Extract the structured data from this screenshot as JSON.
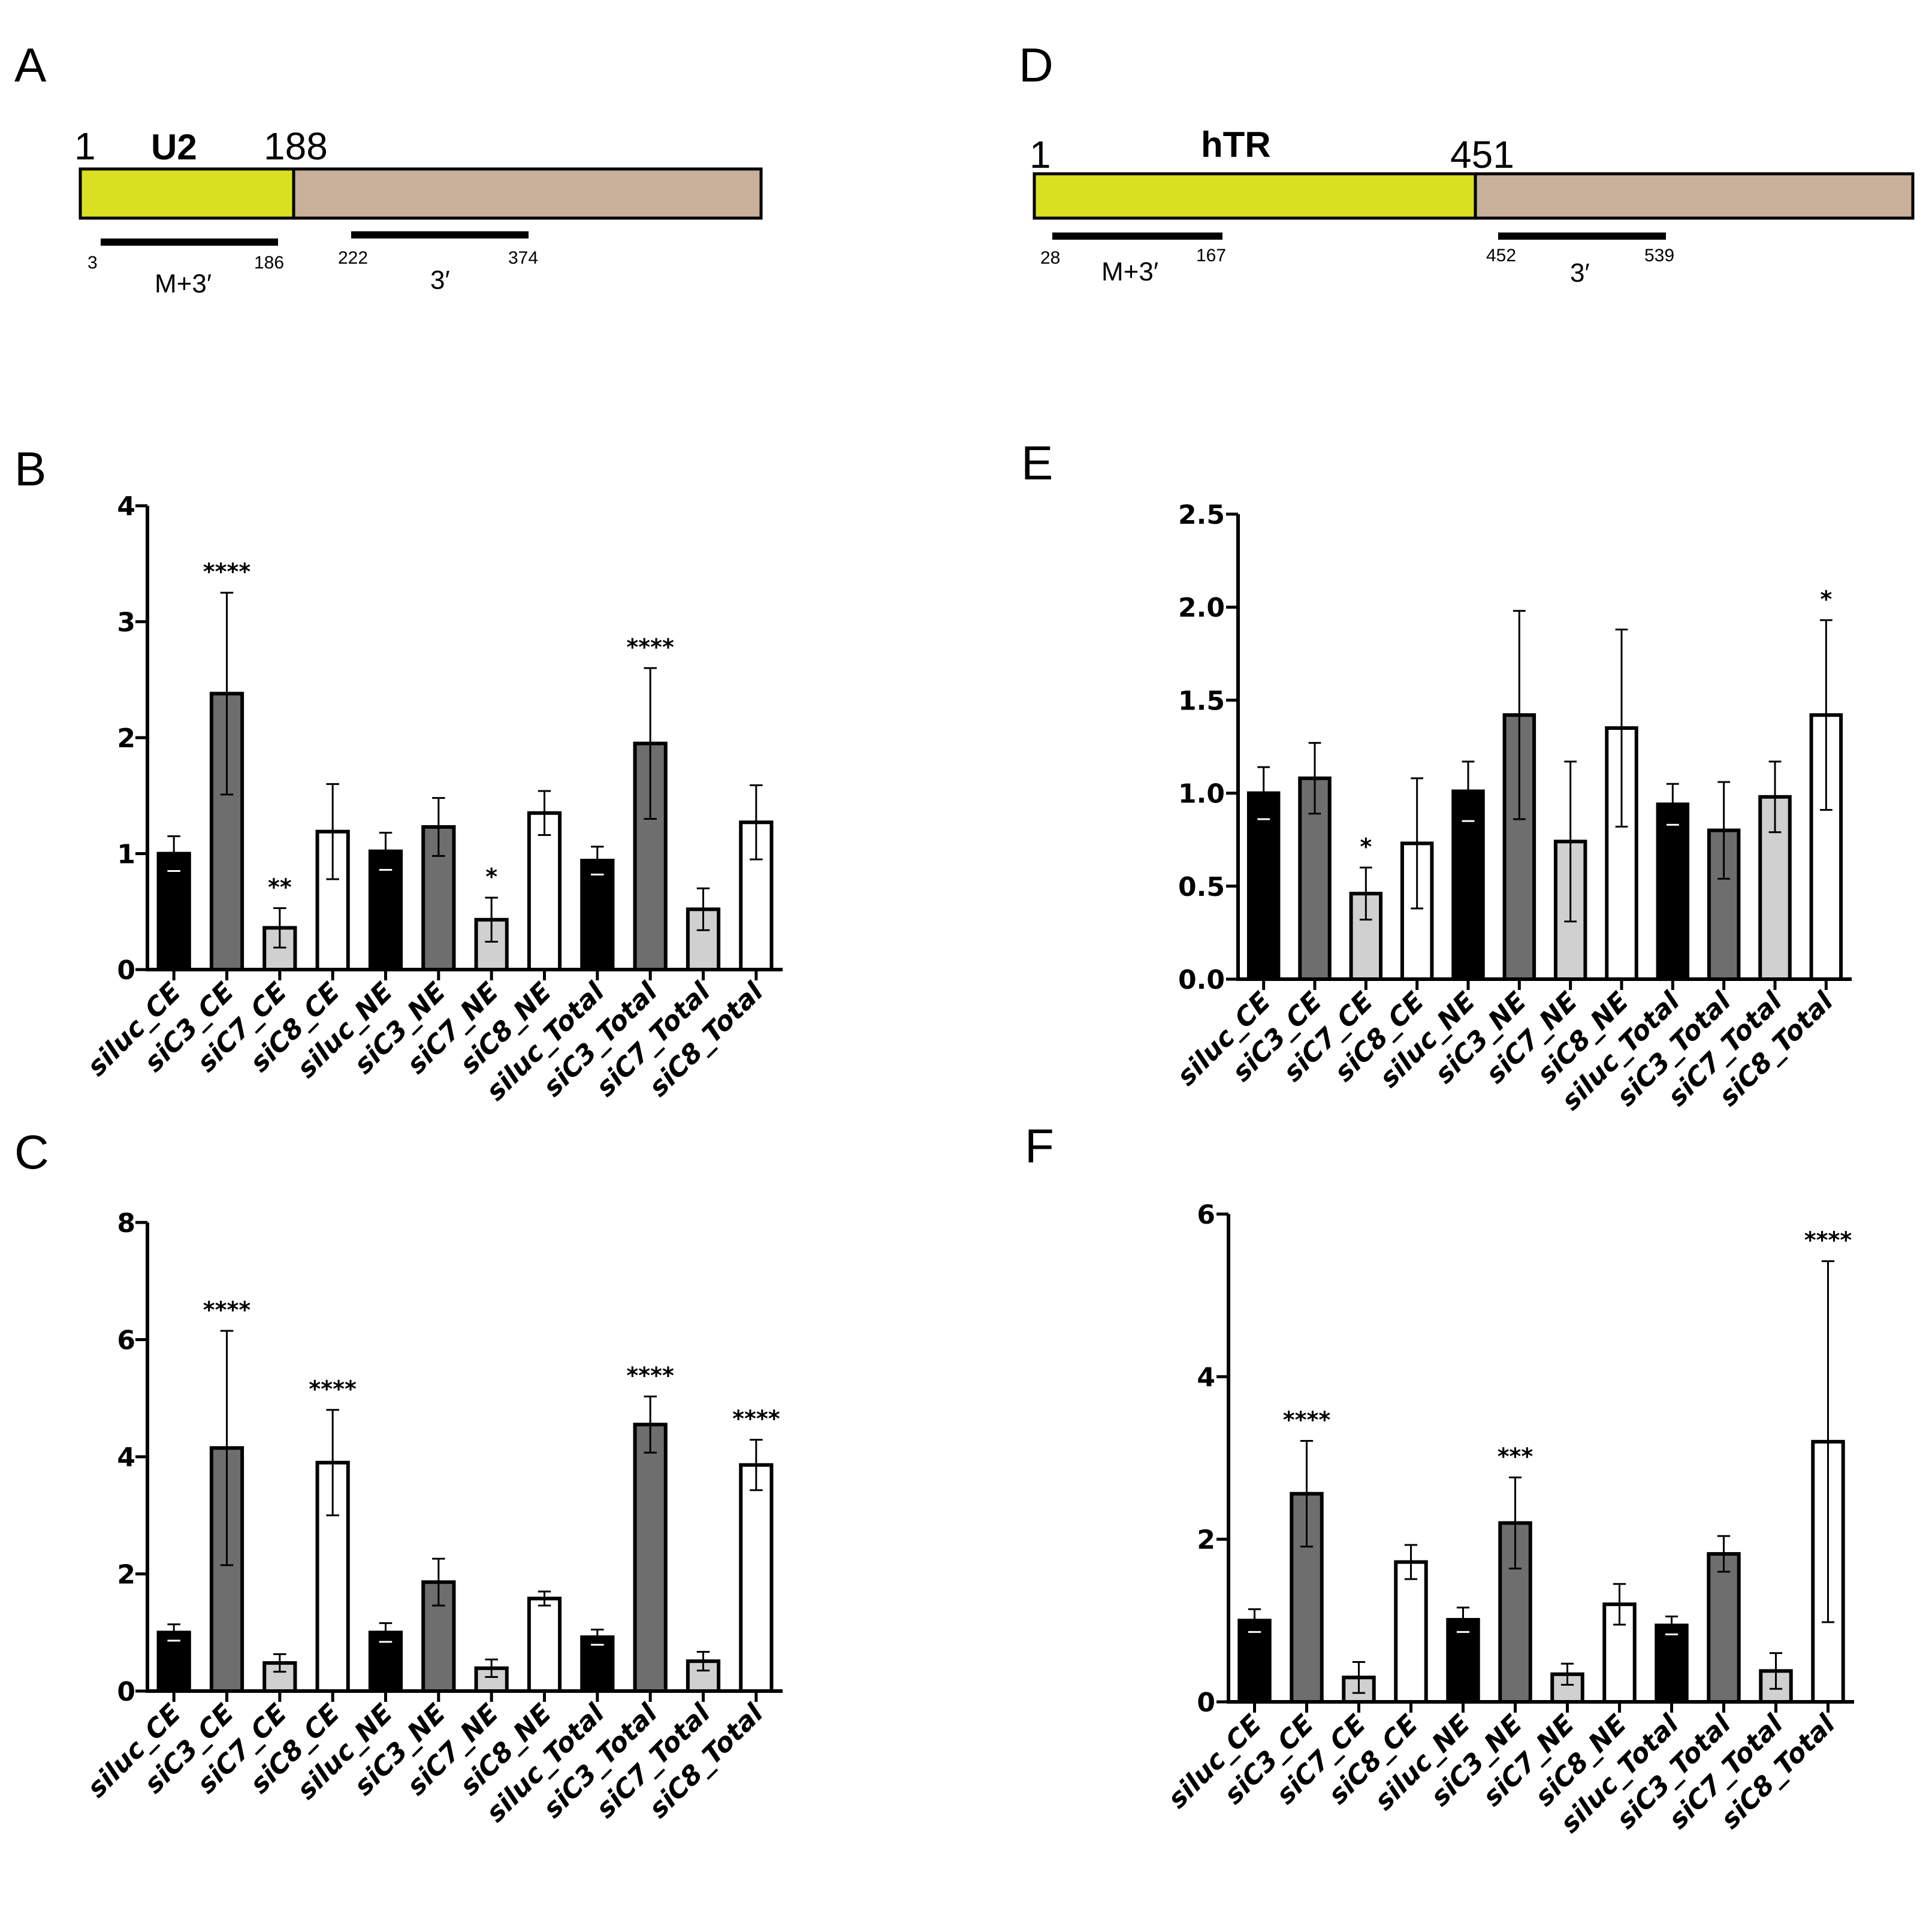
{
  "figure": {
    "panel_letters": [
      "A",
      "D",
      "B",
      "E",
      "C",
      "F"
    ]
  },
  "diagrams": [
    {
      "panel": "A",
      "name": "U2",
      "start_label": "1",
      "split_label": "188",
      "colors": {
        "primary": "#d9e021",
        "extended": "#c8b09a"
      },
      "probes": [
        {
          "start": "3",
          "end": "186",
          "label": "M+3′"
        },
        {
          "start": "222",
          "end": "374",
          "label": "3′"
        }
      ]
    },
    {
      "panel": "D",
      "name": "hTR",
      "start_label": "1",
      "split_label": "451",
      "colors": {
        "primary": "#d9e021",
        "extended": "#c8b09a"
      },
      "probes": [
        {
          "start": "28",
          "end": "167",
          "label": "M+3′"
        },
        {
          "start": "452",
          "end": "539",
          "label": "3′"
        }
      ]
    }
  ],
  "chart_data": [
    {
      "panel": "B",
      "type": "bar",
      "title": "",
      "xlabel": "",
      "ylabel": "",
      "ylim": [
        0,
        4
      ],
      "yticks": [
        "0",
        "1",
        "2",
        "3",
        "4"
      ],
      "categories": [
        "siluc_CE",
        "siC3_CE",
        "siC7_CE",
        "siC8_CE",
        "siluc_NE",
        "siC3_NE",
        "siC7_NE",
        "siC8_NE",
        "siluc_Total",
        "siC3_Total",
        "siC7_Total",
        "siC8_Total"
      ],
      "values": [
        1.0,
        2.38,
        0.36,
        1.19,
        1.02,
        1.23,
        0.43,
        1.35,
        0.94,
        1.95,
        0.52,
        1.27
      ],
      "errors": [
        0.15,
        0.87,
        0.17,
        0.41,
        0.16,
        0.25,
        0.19,
        0.19,
        0.12,
        0.65,
        0.18,
        0.32
      ],
      "significance": [
        "",
        "****",
        "**",
        "",
        "",
        "",
        "*",
        "",
        "",
        "****",
        "",
        ""
      ],
      "fills": [
        "#000000",
        "#6e6e6e",
        "#d0d0d0",
        "#ffffff",
        "#000000",
        "#6e6e6e",
        "#d0d0d0",
        "#ffffff",
        "#000000",
        "#6e6e6e",
        "#d0d0d0",
        "#ffffff"
      ]
    },
    {
      "panel": "E",
      "type": "bar",
      "title": "",
      "xlabel": "",
      "ylabel": "",
      "ylim": [
        0,
        2.5
      ],
      "yticks": [
        "0.0",
        "0.5",
        "1.0",
        "1.5",
        "2.0",
        "2.5"
      ],
      "categories": [
        "siluc_CE",
        "siC3_CE",
        "siC7_CE",
        "siC8_CE",
        "siluc_NE",
        "siC3_NE",
        "siC7_NE",
        "siC8_NE",
        "siluc_Total",
        "siC3_Total",
        "siC7_Total",
        "siC8_Total"
      ],
      "values": [
        1.0,
        1.08,
        0.46,
        0.73,
        1.01,
        1.42,
        0.74,
        1.35,
        0.94,
        0.8,
        0.98,
        1.42
      ],
      "errors": [
        0.14,
        0.19,
        0.14,
        0.35,
        0.16,
        0.56,
        0.43,
        0.53,
        0.11,
        0.26,
        0.19,
        0.51
      ],
      "significance": [
        "",
        "",
        "*",
        "",
        "",
        "",
        "",
        "",
        "",
        "",
        "",
        "*"
      ],
      "fills": [
        "#000000",
        "#6e6e6e",
        "#d0d0d0",
        "#ffffff",
        "#000000",
        "#6e6e6e",
        "#d0d0d0",
        "#ffffff",
        "#000000",
        "#6e6e6e",
        "#d0d0d0",
        "#ffffff"
      ]
    },
    {
      "panel": "C",
      "type": "bar",
      "title": "",
      "xlabel": "",
      "ylabel": "",
      "ylim": [
        0,
        8
      ],
      "yticks": [
        "0",
        "2",
        "4",
        "6",
        "8"
      ],
      "categories": [
        "siluc_CE",
        "siC3_CE",
        "siC7_CE",
        "siC8_CE",
        "siluc_NE",
        "siC3_NE",
        "siC7_NE",
        "siC8_NE",
        "siluc_Total",
        "siC3_Total",
        "siC7_Total",
        "siC8_Total"
      ],
      "values": [
        1.0,
        4.15,
        0.48,
        3.9,
        1.0,
        1.86,
        0.39,
        1.58,
        0.92,
        4.55,
        0.51,
        3.86
      ],
      "errors": [
        0.14,
        2.0,
        0.15,
        0.9,
        0.16,
        0.4,
        0.15,
        0.12,
        0.13,
        0.48,
        0.16,
        0.43
      ],
      "significance": [
        "",
        "****",
        "",
        "****",
        "",
        "",
        "",
        "",
        "",
        "****",
        "",
        "****"
      ],
      "fills": [
        "#000000",
        "#6e6e6e",
        "#d0d0d0",
        "#ffffff",
        "#000000",
        "#6e6e6e",
        "#d0d0d0",
        "#ffffff",
        "#000000",
        "#6e6e6e",
        "#d0d0d0",
        "#ffffff"
      ]
    },
    {
      "panel": "F",
      "type": "bar",
      "title": "",
      "xlabel": "",
      "ylabel": "",
      "ylim": [
        0,
        6
      ],
      "yticks": [
        "0",
        "2",
        "4",
        "6"
      ],
      "categories": [
        "siluc_CE",
        "siC3_CE",
        "siC7_CE",
        "siC8_CE",
        "siluc_NE",
        "siC3_NE",
        "siC7_NE",
        "siC8_NE",
        "siluc_Total",
        "siC3_Total",
        "siC7_Total",
        "siC8_Total"
      ],
      "values": [
        1.0,
        2.56,
        0.3,
        1.72,
        1.01,
        2.2,
        0.34,
        1.2,
        0.94,
        1.82,
        0.38,
        3.2
      ],
      "errors": [
        0.14,
        0.65,
        0.19,
        0.21,
        0.15,
        0.56,
        0.13,
        0.25,
        0.11,
        0.22,
        0.22,
        2.22
      ],
      "significance": [
        "",
        "****",
        "",
        "",
        "",
        "***",
        "",
        "",
        "",
        "",
        "",
        "****"
      ],
      "fills": [
        "#000000",
        "#6e6e6e",
        "#d0d0d0",
        "#ffffff",
        "#000000",
        "#6e6e6e",
        "#d0d0d0",
        "#ffffff",
        "#000000",
        "#6e6e6e",
        "#d0d0d0",
        "#ffffff"
      ]
    }
  ]
}
